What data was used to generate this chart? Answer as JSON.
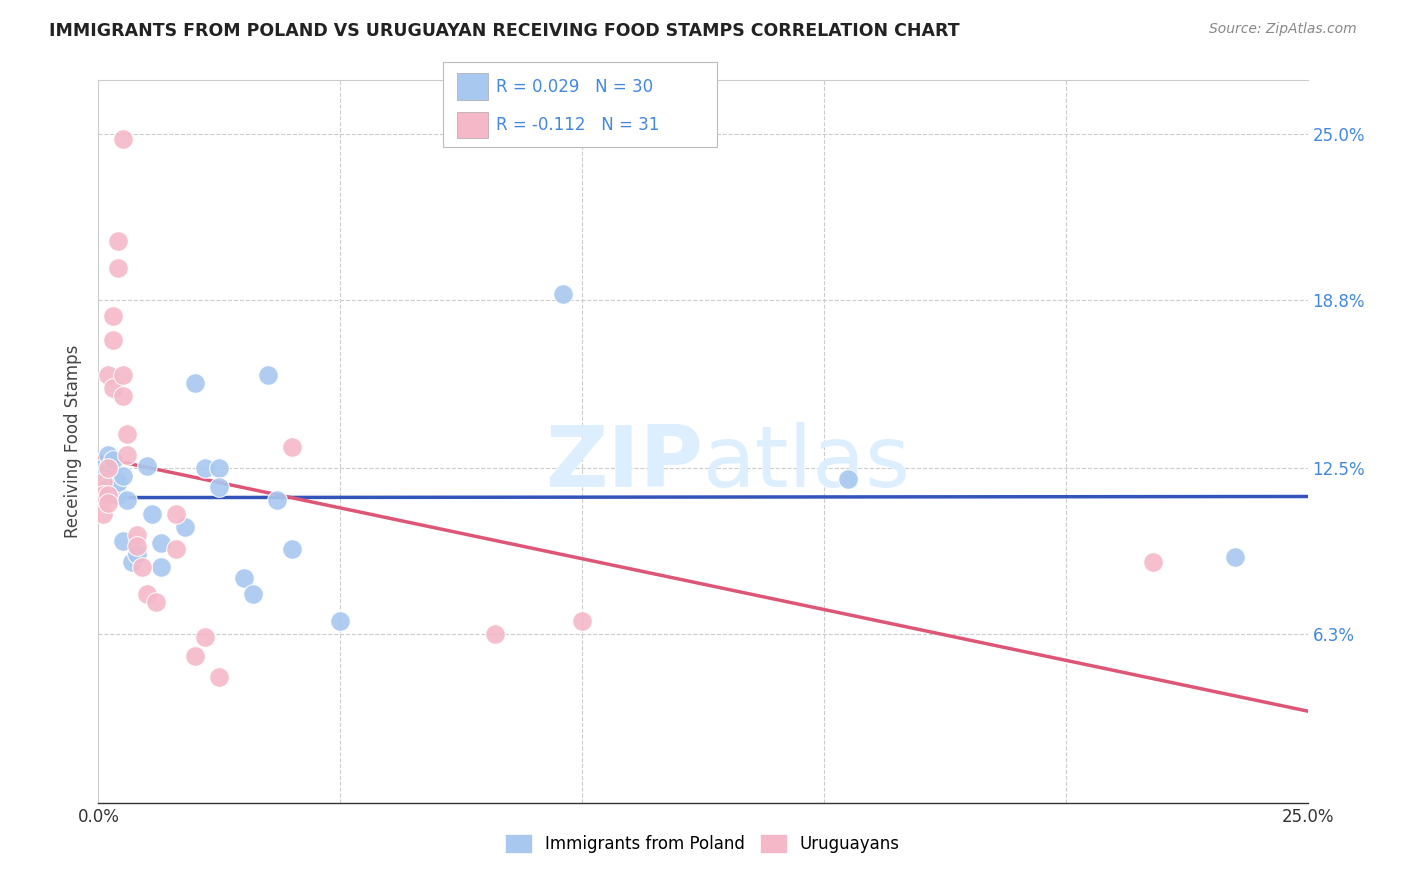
{
  "title": "IMMIGRANTS FROM POLAND VS URUGUAYAN RECEIVING FOOD STAMPS CORRELATION CHART",
  "source": "Source: ZipAtlas.com",
  "ylabel": "Receiving Food Stamps",
  "ytick_labels": [
    "6.3%",
    "12.5%",
    "18.8%",
    "25.0%"
  ],
  "ytick_values": [
    0.063,
    0.125,
    0.188,
    0.25
  ],
  "xlim": [
    0.0,
    0.25
  ],
  "ylim": [
    0.0,
    0.27
  ],
  "legend_label1": "Immigrants from Poland",
  "legend_label2": "Uruguayans",
  "R1": 0.029,
  "N1": 30,
  "R2": -0.112,
  "N2": 31,
  "color_blue": "#a8c8f0",
  "color_pink": "#f4b8c8",
  "color_line_blue": "#3355bb",
  "color_line_pink": "#dd5577",
  "color_right_axis": "#4488dd",
  "watermark_color": "#ddeeff",
  "blue_points": [
    [
      0.001,
      0.125
    ],
    [
      0.002,
      0.13
    ],
    [
      0.002,
      0.118
    ],
    [
      0.003,
      0.123
    ],
    [
      0.003,
      0.128
    ],
    [
      0.004,
      0.115
    ],
    [
      0.004,
      0.12
    ],
    [
      0.005,
      0.122
    ],
    [
      0.005,
      0.098
    ],
    [
      0.006,
      0.113
    ],
    [
      0.007,
      0.09
    ],
    [
      0.008,
      0.093
    ],
    [
      0.01,
      0.126
    ],
    [
      0.011,
      0.108
    ],
    [
      0.013,
      0.097
    ],
    [
      0.013,
      0.088
    ],
    [
      0.018,
      0.103
    ],
    [
      0.02,
      0.157
    ],
    [
      0.022,
      0.125
    ],
    [
      0.025,
      0.125
    ],
    [
      0.025,
      0.118
    ],
    [
      0.03,
      0.084
    ],
    [
      0.032,
      0.078
    ],
    [
      0.035,
      0.16
    ],
    [
      0.037,
      0.113
    ],
    [
      0.04,
      0.095
    ],
    [
      0.05,
      0.068
    ],
    [
      0.096,
      0.19
    ],
    [
      0.155,
      0.121
    ],
    [
      0.235,
      0.092
    ]
  ],
  "pink_points": [
    [
      0.001,
      0.12
    ],
    [
      0.001,
      0.115
    ],
    [
      0.001,
      0.108
    ],
    [
      0.002,
      0.125
    ],
    [
      0.002,
      0.115
    ],
    [
      0.002,
      0.112
    ],
    [
      0.002,
      0.16
    ],
    [
      0.003,
      0.155
    ],
    [
      0.003,
      0.173
    ],
    [
      0.003,
      0.182
    ],
    [
      0.004,
      0.21
    ],
    [
      0.004,
      0.2
    ],
    [
      0.005,
      0.248
    ],
    [
      0.005,
      0.16
    ],
    [
      0.005,
      0.152
    ],
    [
      0.006,
      0.138
    ],
    [
      0.006,
      0.13
    ],
    [
      0.008,
      0.1
    ],
    [
      0.008,
      0.096
    ],
    [
      0.009,
      0.088
    ],
    [
      0.01,
      0.078
    ],
    [
      0.012,
      0.075
    ],
    [
      0.016,
      0.095
    ],
    [
      0.016,
      0.108
    ],
    [
      0.02,
      0.055
    ],
    [
      0.022,
      0.062
    ],
    [
      0.025,
      0.047
    ],
    [
      0.04,
      0.133
    ],
    [
      0.082,
      0.063
    ],
    [
      0.1,
      0.068
    ],
    [
      0.218,
      0.09
    ]
  ]
}
